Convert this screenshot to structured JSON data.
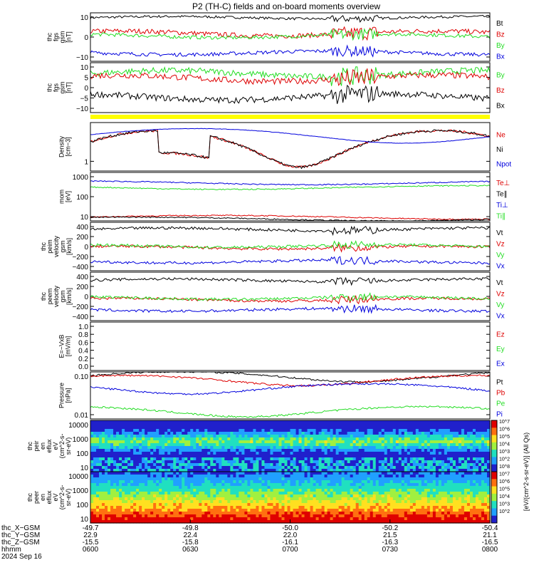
{
  "title": "P2 (TH-C) fields and on-board moments overview",
  "colors": {
    "black": "#000000",
    "red": "#dd0000",
    "green": "#22dd22",
    "blue": "#0000dd",
    "yellow": "#ffff00"
  },
  "chart_data": [
    {
      "id": "fgs_gsm",
      "type": "line",
      "ylabel_lines": [
        "thc",
        "fgs",
        "gsm",
        "[nT]"
      ],
      "ylim": [
        -20,
        20
      ],
      "ticks": [
        "10",
        "0",
        "−10"
      ],
      "series": [
        {
          "name": "Bt",
          "color": "#000000",
          "level": 16,
          "noise": 1
        },
        {
          "name": "Bz",
          "color": "#dd0000",
          "level": 3,
          "noise": 2
        },
        {
          "name": "By",
          "color": "#22dd22",
          "level": 1,
          "noise": 1.5
        },
        {
          "name": "Bx",
          "color": "#0000dd",
          "level": -13,
          "noise": 1.5
        }
      ]
    },
    {
      "id": "fgs_gse",
      "type": "line",
      "ylabel_lines": [
        "thc",
        "fgs",
        "gsm",
        "[nT]"
      ],
      "ylim": [
        -20,
        12
      ],
      "ticks": [
        "10",
        "5",
        "0",
        "−5",
        "−10"
      ],
      "series": [
        {
          "name": "By",
          "color": "#22dd22",
          "level": 5,
          "noise": 2
        },
        {
          "name": "Bz",
          "color": "#dd0000",
          "level": 2,
          "noise": 2
        },
        {
          "name": "Bx",
          "color": "#000000",
          "level": -10,
          "noise": 2
        }
      ]
    },
    {
      "id": "density",
      "type": "line",
      "log": true,
      "ylabel_lines": [
        "Density",
        "[cm−3]"
      ],
      "ylim": [
        0.8,
        8
      ],
      "ticks": [
        "1"
      ],
      "series": [
        {
          "name": "Ne",
          "color": "#dd0000"
        },
        {
          "name": "Ni",
          "color": "#000000"
        },
        {
          "name": "Npot",
          "color": "#0000dd"
        }
      ]
    },
    {
      "id": "temperature",
      "type": "line",
      "log": true,
      "ylabel_lines": [
        "mom",
        "[eV]"
      ],
      "ylim": [
        8,
        1500
      ],
      "ticks": [
        "1000",
        "100",
        "10"
      ],
      "series": [
        {
          "name": "Te⊥",
          "color": "#dd0000",
          "level": 12
        },
        {
          "name": "Te∥",
          "color": "#000000",
          "level": 10
        },
        {
          "name": "Ti⊥",
          "color": "#0000dd",
          "level": 500
        },
        {
          "name": "Ti∥",
          "color": "#22dd22",
          "level": 300
        }
      ]
    },
    {
      "id": "peim_velocity",
      "type": "line",
      "ylabel_lines": [
        "thc",
        "peim",
        "velocity",
        "gsm",
        "[km/s]"
      ],
      "ylim": [
        -450,
        450
      ],
      "ticks": [
        "400",
        "200",
        "0",
        "−200",
        "−400"
      ],
      "series": [
        {
          "name": "Vt",
          "color": "#000000",
          "level": 320
        },
        {
          "name": "Vz",
          "color": "#dd0000",
          "level": -20
        },
        {
          "name": "Vy",
          "color": "#22dd22",
          "level": 10
        },
        {
          "name": "Vx",
          "color": "#0000dd",
          "level": -280
        }
      ]
    },
    {
      "id": "peem_velocity",
      "type": "line",
      "ylabel_lines": [
        "thc",
        "peem",
        "velocity",
        "gsm",
        "[km/s]"
      ],
      "ylim": [
        -450,
        450
      ],
      "ticks": [
        "400",
        "200",
        "0",
        "−200",
        "−400"
      ],
      "series": [
        {
          "name": "Vt",
          "color": "#000000",
          "level": 300
        },
        {
          "name": "Vz",
          "color": "#dd0000",
          "level": -60
        },
        {
          "name": "Vy",
          "color": "#22dd22",
          "level": -30
        },
        {
          "name": "Vx",
          "color": "#0000dd",
          "level": -250
        }
      ]
    },
    {
      "id": "efield",
      "type": "line",
      "ylabel_lines": [
        "E=−VxB",
        "[mV/m]"
      ],
      "ylim": [
        0,
        1
      ],
      "ticks": [
        "1.0",
        "0.8",
        "0.6",
        "0.4",
        "0.2",
        "0.0"
      ],
      "series": [
        {
          "name": "Ez",
          "color": "#dd0000"
        },
        {
          "name": "Ey",
          "color": "#22dd22"
        },
        {
          "name": "Ex",
          "color": "#0000dd"
        }
      ]
    },
    {
      "id": "pressure",
      "type": "line",
      "log": true,
      "ylabel_lines": [
        "Pressure",
        "[nPa]"
      ],
      "ylim": [
        0.003,
        0.15
      ],
      "ticks": [
        "0.10",
        "0.01"
      ],
      "series": [
        {
          "name": "Pt",
          "color": "#000000"
        },
        {
          "name": "Pb",
          "color": "#dd0000"
        },
        {
          "name": "Pe",
          "color": "#22dd22"
        },
        {
          "name": "Pi",
          "color": "#0000dd"
        }
      ]
    },
    {
      "id": "peir_spectrogram",
      "type": "heatmap",
      "ylabel_lines": [
        "thc",
        "peir",
        "en",
        "eflux",
        "eV",
        "(cm^2-s-",
        "sr-eV)"
      ],
      "ticks": [
        "10000",
        "1000",
        "100",
        "10"
      ]
    },
    {
      "id": "peer_spectrogram",
      "type": "heatmap",
      "ylabel_lines": [
        "thc",
        "peer",
        "en",
        "eflux",
        "eV",
        "(cm^2-s-",
        "sr-eV)"
      ],
      "ticks": [
        "10000",
        "1000",
        "100",
        "10"
      ]
    }
  ],
  "colorbar": {
    "label": "[eV/(cm^2-s-sr-eV)] (All Qs)",
    "ticks": [
      "10^7",
      "10^6",
      "10^5",
      "10^4",
      "10^3",
      "10^2",
      "10^8",
      "10^7",
      "10^6",
      "10^5",
      "10^4",
      "10^3",
      "10^2"
    ]
  },
  "x_axis": {
    "rows": [
      {
        "label": "thc_X−GSM",
        "values": [
          "-49.7",
          "-49.8",
          "-50.0",
          "-50.2",
          "-50.4"
        ]
      },
      {
        "label": "thc_Y−GSM",
        "values": [
          "22.9",
          "22.4",
          "22.0",
          "21.5",
          "21.1"
        ]
      },
      {
        "label": "thc_Z−GSM",
        "values": [
          "-15.5",
          "-15.8",
          "-16.1",
          "-16.3",
          "-16.5"
        ]
      },
      {
        "label": "hhmm",
        "values": [
          "0600",
          "0630",
          "0700",
          "0730",
          "0800"
        ]
      }
    ],
    "date": "2024 Sep 16"
  }
}
